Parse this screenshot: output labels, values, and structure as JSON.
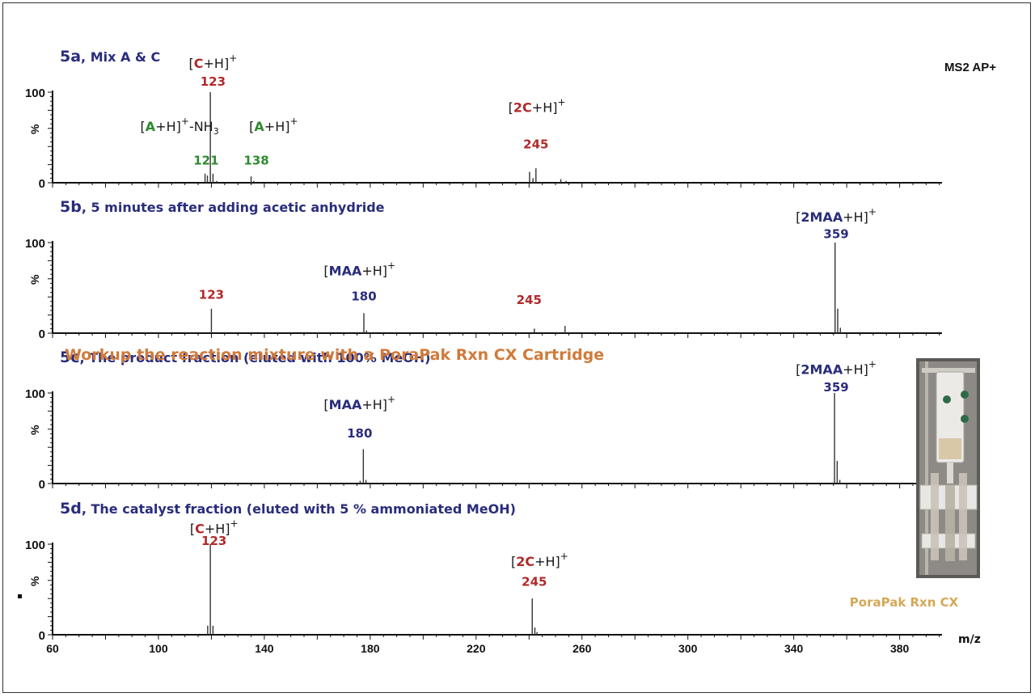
{
  "chart_data": {
    "type": "bar",
    "xlabel": "m/z",
    "ylabel": "%",
    "corner_label": "MS2 AP+",
    "x_ticks": [
      "60",
      "100",
      "140",
      "180",
      "220",
      "260",
      "300",
      "340",
      "380"
    ],
    "xlim": [
      60,
      396
    ],
    "ylim": [
      0,
      100
    ],
    "y_ticks": [
      "0",
      "100"
    ],
    "section_note": "Workup the reaction mixture with a PoraPak Rxn CX Cartridge",
    "photo_caption": "PoraPak Rxn CX",
    "colors": {
      "title": "#2a2d7c",
      "C": "#b02a2a",
      "A": "#2f8a2f",
      "MAA": "#2a2d7c",
      "note": "#d07a3a",
      "caption": "#d4a856"
    },
    "panels": [
      {
        "title": {
          "prefix": "5a",
          "text": ", Mix A & C"
        },
        "peaks": [
          {
            "x": 117.6,
            "y": 10
          },
          {
            "x": 118.5,
            "y": 8
          },
          {
            "x": 119.6,
            "y": 100
          },
          {
            "x": 120.6,
            "y": 10
          },
          {
            "x": 122.0,
            "y": 2
          },
          {
            "x": 135.0,
            "y": 7
          },
          {
            "x": 136.0,
            "y": 2
          },
          {
            "x": 240.2,
            "y": 12
          },
          {
            "x": 241.5,
            "y": 5
          },
          {
            "x": 242.6,
            "y": 16
          },
          {
            "x": 252.0,
            "y": 4
          },
          {
            "x": 254.0,
            "y": 2
          },
          {
            "x": 374.0,
            "y": 1
          }
        ],
        "peak_labels": [
          {
            "x": 120.6,
            "y": 107,
            "text": "123",
            "color": "C"
          },
          {
            "x": 118.0,
            "y": 20,
            "text": "121",
            "color": "A"
          },
          {
            "x": 137.0,
            "y": 20,
            "text": "138",
            "color": "A"
          },
          {
            "x": 242.6,
            "y": 38,
            "text": "245",
            "color": "C"
          }
        ],
        "ion_labels": [
          {
            "x": 120.6,
            "y": 127,
            "open": "[",
            "species": "C",
            "species_color": "C",
            "rest": "+H]",
            "sup": "+"
          },
          {
            "x": 108.0,
            "y": 57,
            "open": "[",
            "species": "A",
            "species_color": "A",
            "rest": "+H]",
            "sup": "+",
            "tail": "-NH",
            "tail_sub": "3"
          },
          {
            "x": 143.5,
            "y": 57,
            "open": "[",
            "species": "A",
            "species_color": "A",
            "rest": "+H]",
            "sup": "+"
          },
          {
            "x": 243.0,
            "y": 78,
            "open": "[",
            "species": "2C",
            "species_color": "C",
            "rest": "+H]",
            "sup": "+"
          }
        ]
      },
      {
        "title": {
          "prefix": "5b",
          "text": ", 5 minutes after adding acetic anhydride"
        },
        "peaks": [
          {
            "x": 120.0,
            "y": 27
          },
          {
            "x": 177.6,
            "y": 22
          },
          {
            "x": 178.6,
            "y": 3
          },
          {
            "x": 242.0,
            "y": 5
          },
          {
            "x": 253.6,
            "y": 8
          },
          {
            "x": 355.6,
            "y": 100
          },
          {
            "x": 356.6,
            "y": 27
          },
          {
            "x": 357.6,
            "y": 6
          }
        ],
        "peak_labels": [
          {
            "x": 120.0,
            "y": 38,
            "text": "123",
            "color": "C"
          },
          {
            "x": 177.6,
            "y": 36,
            "text": "180",
            "color": "MAA"
          },
          {
            "x": 240.0,
            "y": 32,
            "text": "245",
            "color": "C"
          },
          {
            "x": 356.0,
            "y": 105,
            "text": "359",
            "color": "MAA"
          }
        ],
        "ion_labels": [
          {
            "x": 176.0,
            "y": 64,
            "open": "[",
            "species": "MAA",
            "species_color": "MAA",
            "rest": "+H]",
            "sup": "+"
          },
          {
            "x": 356.0,
            "y": 123,
            "open": "[",
            "species": "2MAA",
            "species_color": "MAA",
            "rest": "+H]",
            "sup": "+"
          }
        ]
      },
      {
        "title": {
          "prefix": "5c",
          "text": ", The product fraction (eluted with 100% MeOH)"
        },
        "peaks": [
          {
            "x": 176.2,
            "y": 3
          },
          {
            "x": 177.4,
            "y": 38
          },
          {
            "x": 178.4,
            "y": 4
          },
          {
            "x": 355.4,
            "y": 100
          },
          {
            "x": 356.4,
            "y": 25
          },
          {
            "x": 357.4,
            "y": 4
          }
        ],
        "peak_labels": [
          {
            "x": 176.0,
            "y": 51,
            "text": "180",
            "color": "MAA"
          },
          {
            "x": 356.0,
            "y": 102,
            "text": "359",
            "color": "MAA"
          }
        ],
        "ion_labels": [
          {
            "x": 176.0,
            "y": 82,
            "open": "[",
            "species": "MAA",
            "species_color": "MAA",
            "rest": "+H]",
            "sup": "+"
          },
          {
            "x": 356.0,
            "y": 121,
            "open": "[",
            "species": "2MAA",
            "species_color": "MAA",
            "rest": "+H]",
            "sup": "+"
          }
        ],
        "note": "5c"
      },
      {
        "title": {
          "prefix": "5d",
          "text": ", The catalyst fraction (eluted with 5 % ammoniated MeOH)"
        },
        "peaks": [
          {
            "x": 118.6,
            "y": 10
          },
          {
            "x": 119.6,
            "y": 100
          },
          {
            "x": 120.6,
            "y": 10
          },
          {
            "x": 241.2,
            "y": 40
          },
          {
            "x": 242.2,
            "y": 8
          },
          {
            "x": 243.0,
            "y": 3
          }
        ],
        "peak_labels": [
          {
            "x": 121.0,
            "y": 99,
            "text": "123",
            "color": "C"
          },
          {
            "x": 242.0,
            "y": 54,
            "text": "245",
            "color": "C"
          }
        ],
        "ion_labels": [
          {
            "x": 121.0,
            "y": 112,
            "open": "[",
            "species": "C",
            "species_color": "C",
            "rest": "+H]",
            "sup": "+"
          },
          {
            "x": 244.0,
            "y": 76,
            "open": "[",
            "species": "2C",
            "species_color": "C",
            "rest": "+H]",
            "sup": "+"
          }
        ]
      }
    ]
  }
}
